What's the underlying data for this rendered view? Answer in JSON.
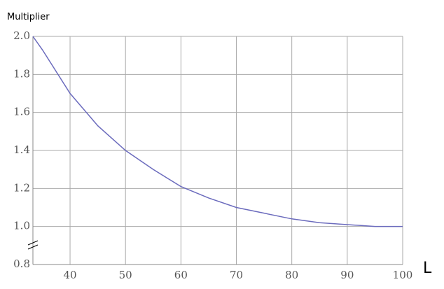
{
  "chart_data": {
    "type": "line",
    "y_label": "Multiplier",
    "x_label": "L",
    "x": [
      33.3,
      35,
      40,
      45,
      50,
      55,
      60,
      65,
      70,
      75,
      80,
      85,
      90,
      95,
      100
    ],
    "series": [
      {
        "color": "#6b6bbd",
        "values": [
          2.0,
          1.93,
          1.7,
          1.53,
          1.4,
          1.3,
          1.21,
          1.15,
          1.1,
          1.07,
          1.04,
          1.02,
          1.01,
          1.0,
          1.0
        ]
      }
    ],
    "xlim": [
      33.3,
      100
    ],
    "ylim": [
      0.8,
      2.0
    ],
    "xticks": [
      40,
      50,
      60,
      70,
      80,
      90,
      100
    ],
    "yticks": [
      0.8,
      {
        "value": 1,
        "label": "1.0"
      },
      1.2,
      1.4,
      1.6,
      1.8,
      {
        "value": 2,
        "label": "2.0"
      }
    ],
    "grid": true
  }
}
